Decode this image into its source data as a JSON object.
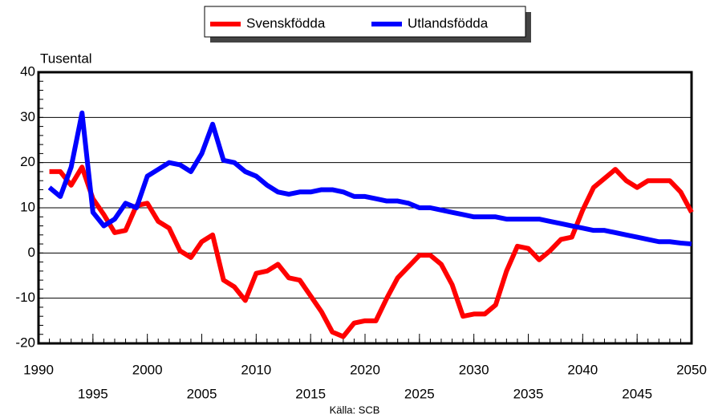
{
  "chart_data": {
    "type": "line",
    "y_label": "Tusental",
    "source": "Källa: SCB",
    "x": [
      1991,
      1992,
      1993,
      1994,
      1995,
      1996,
      1997,
      1998,
      1999,
      2000,
      2001,
      2002,
      2003,
      2004,
      2005,
      2006,
      2007,
      2008,
      2009,
      2010,
      2011,
      2012,
      2013,
      2014,
      2015,
      2016,
      2017,
      2018,
      2019,
      2020,
      2021,
      2022,
      2023,
      2024,
      2025,
      2026,
      2027,
      2028,
      2029,
      2030,
      2031,
      2032,
      2033,
      2034,
      2035,
      2036,
      2037,
      2038,
      2039,
      2040,
      2041,
      2042,
      2043,
      2044,
      2045,
      2046,
      2047,
      2048,
      2049,
      2050
    ],
    "series": [
      {
        "name": "Svenskfödda",
        "color": "#ff0000",
        "values": [
          18,
          18,
          15,
          19,
          12,
          8.5,
          4.5,
          5,
          10.5,
          11,
          7,
          5.5,
          0.5,
          -1,
          2.5,
          4,
          -6,
          -7.5,
          -10.5,
          -4.5,
          -4,
          -2.5,
          -5.5,
          -6,
          -9.5,
          -13,
          -17.5,
          -18.5,
          -15.5,
          -15,
          -15,
          -10,
          -5.5,
          -3,
          -0.5,
          -0.5,
          -2.5,
          -7,
          -14,
          -13.5,
          -13.5,
          -11.5,
          -4,
          1.5,
          1,
          -1.5,
          0.5,
          3,
          3.5,
          9.5,
          14.5,
          16.5,
          18.5,
          16,
          14.5,
          16,
          16,
          16,
          13.5,
          9
        ]
      },
      {
        "name": "Utlandsfödda",
        "color": "#0000ff",
        "values": [
          14.5,
          12.5,
          19,
          31,
          9,
          6,
          7.5,
          11,
          10,
          17,
          18.5,
          20,
          19.5,
          18,
          22,
          28.5,
          20.5,
          20,
          18,
          17,
          15,
          13.5,
          13,
          13.5,
          13.5,
          14,
          14,
          13.5,
          12.5,
          12.5,
          12,
          11.5,
          11.5,
          11,
          10,
          10,
          9.5,
          9,
          8.5,
          8,
          8,
          8,
          7.5,
          7.5,
          7.5,
          7.5,
          7,
          6.5,
          6,
          5.5,
          5,
          5,
          4.5,
          4,
          3.5,
          3,
          2.5,
          2.5,
          2.2,
          2
        ]
      }
    ],
    "xlim": [
      1990,
      2050
    ],
    "xticks": [
      1990,
      1995,
      2000,
      2005,
      2010,
      2015,
      2020,
      2025,
      2030,
      2035,
      2040,
      2045,
      2050
    ],
    "ylim": [
      -20,
      40
    ],
    "yticks": [
      -20,
      -10,
      0,
      10,
      20,
      30,
      40
    ],
    "grid": true
  }
}
